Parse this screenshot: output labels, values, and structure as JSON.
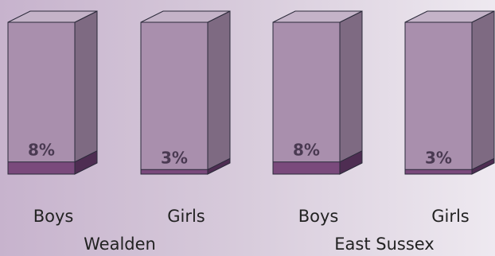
{
  "chart_data": {
    "type": "bar",
    "style": "3d-column",
    "groups": [
      "Wealden",
      "East Sussex"
    ],
    "categories": [
      "Boys",
      "Girls",
      "Boys",
      "Girls"
    ],
    "values": [
      8,
      3,
      8,
      3
    ],
    "value_labels": [
      "8%",
      "3%",
      "8%",
      "3%"
    ],
    "unit": "%",
    "ylim": [
      0,
      100
    ],
    "grid": false,
    "legend": "none"
  },
  "colors": {
    "empty_front": "#a98fad",
    "empty_side": "#7e6a82",
    "empty_top": "#c4b3c8",
    "fill_front": "#7a4a7c",
    "fill_side": "#4e2d52",
    "outline": "#2b2a3a"
  }
}
